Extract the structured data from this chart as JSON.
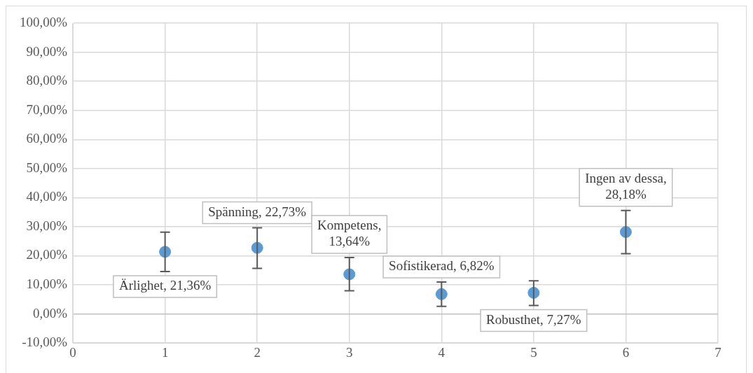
{
  "chart_data": {
    "type": "scatter",
    "x": [
      1,
      2,
      3,
      4,
      5,
      6
    ],
    "values": [
      21.36,
      22.73,
      13.64,
      6.82,
      7.27,
      28.18
    ],
    "errors": [
      [
        14.6,
        28.1
      ],
      [
        15.7,
        29.6
      ],
      [
        8.0,
        19.4
      ],
      [
        2.6,
        11.0
      ],
      [
        2.9,
        11.4
      ],
      [
        20.7,
        35.6
      ]
    ],
    "value_labels": [
      "Ärlighet, 21,36%",
      "Spänning, 22,73%",
      "Kompetens, 13,64%",
      "Sofistikerad, 6,82%",
      "Robusthet, 7,27%",
      "Ingen av dessa, 28,18%"
    ],
    "color": "#5b9bd5",
    "marker": "circle",
    "grid": true,
    "xlim": [
      0,
      7
    ],
    "xticks": [
      0,
      1,
      2,
      3,
      4,
      5,
      6,
      7
    ],
    "ylim": [
      -10,
      100
    ],
    "yticks": [
      {
        "value": -10,
        "label": "-10,00%"
      },
      {
        "value": 0,
        "label": "0,00%"
      },
      {
        "value": 10,
        "label": "10,00%"
      },
      {
        "value": 20,
        "label": "20,00%"
      },
      {
        "value": 30,
        "label": "30,00%"
      },
      {
        "value": 40,
        "label": "40,00%"
      },
      {
        "value": 50,
        "label": "50,00%"
      },
      {
        "value": 60,
        "label": "60,00%"
      },
      {
        "value": 70,
        "label": "70,00%"
      },
      {
        "value": 80,
        "label": "80,00%"
      },
      {
        "value": 90,
        "label": "90,00%"
      },
      {
        "value": 100,
        "label": "100,00%"
      }
    ]
  }
}
